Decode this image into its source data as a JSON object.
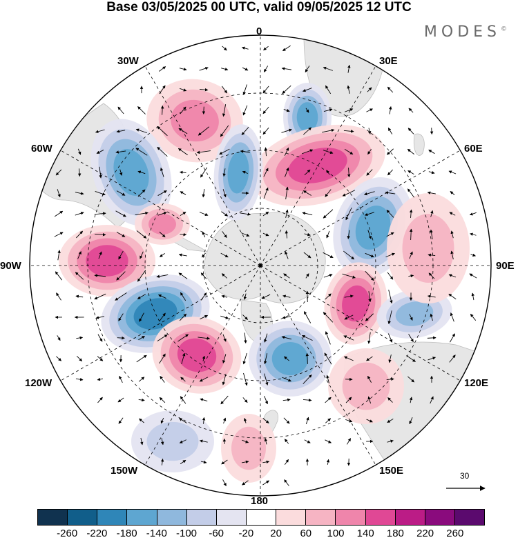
{
  "title": "Base 03/05/2025 00 UTC, valid 09/05/2025 12 UTC",
  "brand": "MODES",
  "brand_mark": "©",
  "longitude_labels": {
    "top": "0",
    "top_right": "30E",
    "right_upper": "60E",
    "right": "90E",
    "right_lower": "120E",
    "bottom_right": "150E",
    "bottom": "180",
    "bottom_left": "150W",
    "left_lower": "120W",
    "left": "90W",
    "left_upper": "60W",
    "top_left": "30W"
  },
  "vector_scale": {
    "label": "30"
  },
  "colorbar": {
    "labels": [
      "-260",
      "-220",
      "-180",
      "-140",
      "-100",
      "-60",
      "-20",
      "20",
      "60",
      "100",
      "140",
      "180",
      "220",
      "260"
    ],
    "colors": [
      "#10324f",
      "#115e8a",
      "#2f86b8",
      "#5ea6d1",
      "#8fb8dd",
      "#c3cde8",
      "#e4e4f1",
      "#ffffff",
      "#fbdcdd",
      "#f6b4c3",
      "#ef85ab",
      "#e04895",
      "#bb1c86",
      "#8a0b7d",
      "#5b0a6e"
    ]
  },
  "map": {
    "projection": "south-polar-stereographic",
    "land_color": "#e6e6e6",
    "anomalies": [
      {
        "name": "lobe-30w",
        "color": "#f3a6bd",
        "value": 120
      },
      {
        "name": "lobe-60w",
        "color": "#4f94c6",
        "value": -180
      },
      {
        "name": "lobe-90w",
        "color": "#e04895",
        "value": 180
      },
      {
        "name": "lobe-105w",
        "color": "#2a76a8",
        "value": -220
      },
      {
        "name": "lobe-135w",
        "color": "#e04895",
        "value": 160
      },
      {
        "name": "lobe-165e",
        "color": "#5ea6d1",
        "value": -140
      },
      {
        "name": "lobe-20e",
        "color": "#5ea6d1",
        "value": -140
      },
      {
        "name": "lobe-45e",
        "color": "#e04895",
        "value": 180
      },
      {
        "name": "lobe-70e",
        "color": "#4f94c6",
        "value": -180
      },
      {
        "name": "lobe-110e",
        "color": "#e04895",
        "value": 160
      },
      {
        "name": "lobe-115e",
        "color": "#8fb8dd",
        "value": -100
      },
      {
        "name": "lobe-10w",
        "color": "#8fb8dd",
        "value": -100
      }
    ]
  }
}
